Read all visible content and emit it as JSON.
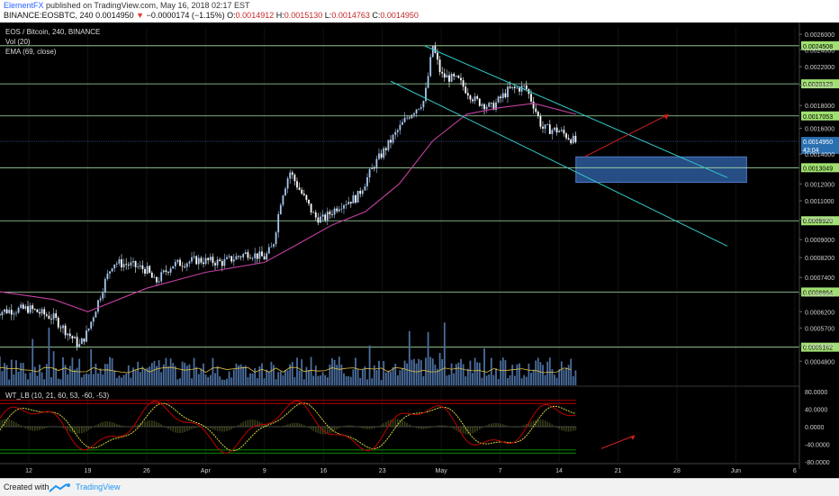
{
  "header": {
    "author": "ElementFX",
    "published": "published on TradingView.com, May 16, 2018 02:17 EST",
    "symbol": "BINANCE:EOSBTC, 240",
    "last": "0.0014950",
    "arrow": "▼",
    "change": "−0.0000174 (−1.15%)",
    "o_label": "O:",
    "o_value": "0.0014912",
    "h_label": "H:",
    "h_value": "0.0015130",
    "l_label": "L:",
    "l_value": "0.0014763",
    "c_label": "C:",
    "c_value": "0.0014950"
  },
  "legend": {
    "title": "EOS / Bitcoin, 240, BINANCE",
    "vol": "Vol (20)",
    "ema": "EMA (69, close)",
    "wt": "WT_LB (10, 21, 60, 53, -60, -53)"
  },
  "footer": {
    "created": "Created with",
    "brand": "TradingView"
  },
  "colors": {
    "background": "#000000",
    "up_candle": "#a8c8f0",
    "down_candle": "#ffffff",
    "ema": "#c040a0",
    "channel": "#30c8c8",
    "horizontal_level": "#a8e0a8",
    "level_badge": "#a0e070",
    "current_price_badge": "#2a6fb0",
    "target_zone": "#2e5a9c",
    "projection_arrow": "#d02020",
    "volume": "#4a6ea0",
    "volume_ma": "#e0c040",
    "wt1": "#c00000",
    "wt2": "#e8e840",
    "wt_ob": "#e00000",
    "wt_os": "#00c000"
  },
  "chart_data": {
    "type": "candlestick",
    "title": "EOS / Bitcoin, 240, BINANCE",
    "x_ticks": [
      "12",
      "19",
      "26",
      "Apr",
      "9",
      "16",
      "23",
      "May",
      "7",
      "14",
      "21",
      "28",
      "Jun",
      "6"
    ],
    "y_ticks": [
      "0.0026000",
      "0.0024000",
      "0.0022000",
      "0.0020000",
      "0.0018000",
      "0.0016000",
      "0.0014000",
      "0.0012000",
      "0.0011000",
      "0.0010000",
      "0.0009000",
      "0.0008200",
      "0.0007400",
      "0.0006800",
      "0.0006200",
      "0.0005700",
      "0.0005200",
      "0.0004800"
    ],
    "ylim": [
      0.00044,
      0.0027
    ],
    "y_scale": "log",
    "horizontal_levels": [
      "0.0024508",
      "0.0020129",
      "0.0017053",
      "0.0013049",
      "0.0009920",
      "0.0006864",
      "0.0005162"
    ],
    "current_price": "0.0014950",
    "countdown": "43:04",
    "target_zone": {
      "from_date": "2018-05-16",
      "to_date": "2018-06-01",
      "low": 0.00121,
      "high": 0.00138
    },
    "channel": {
      "upper": [
        [
          "2018-04-28",
          0.00245
        ],
        [
          "2018-06-03",
          0.00124
        ]
      ],
      "lower": [
        [
          "2018-04-24",
          0.00204
        ],
        [
          "2018-06-03",
          0.00087
        ]
      ]
    },
    "close_path": [
      [
        "2018-03-08",
        0.00062
      ],
      [
        "2018-03-12",
        0.00063
      ],
      [
        "2018-03-15",
        0.0006
      ],
      [
        "2018-03-18",
        0.00052
      ],
      [
        "2018-03-19",
        0.00056
      ],
      [
        "2018-03-21",
        0.00072
      ],
      [
        "2018-03-22",
        0.0008
      ],
      [
        "2018-03-24",
        0.00079
      ],
      [
        "2018-03-26",
        0.00077
      ],
      [
        "2018-03-27",
        0.00072
      ],
      [
        "2018-03-29",
        0.00079
      ],
      [
        "2018-04-01",
        0.00081
      ],
      [
        "2018-04-04",
        0.0008
      ],
      [
        "2018-04-07",
        0.00084
      ],
      [
        "2018-04-09",
        0.00082
      ],
      [
        "2018-04-10",
        0.00087
      ],
      [
        "2018-04-11",
        0.00112
      ],
      [
        "2018-04-12",
        0.00128
      ],
      [
        "2018-04-13",
        0.00118
      ],
      [
        "2018-04-15",
        0.00101
      ],
      [
        "2018-04-16",
        0.001
      ],
      [
        "2018-04-18",
        0.00108
      ],
      [
        "2018-04-20",
        0.00112
      ],
      [
        "2018-04-22",
        0.00132
      ],
      [
        "2018-04-24",
        0.0015
      ],
      [
        "2018-04-26",
        0.0017
      ],
      [
        "2018-04-28",
        0.00185
      ],
      [
        "2018-04-29",
        0.00245
      ],
      [
        "2018-04-30",
        0.0021
      ],
      [
        "2018-05-02",
        0.00205
      ],
      [
        "2018-05-04",
        0.00185
      ],
      [
        "2018-05-06",
        0.00178
      ],
      [
        "2018-05-08",
        0.00195
      ],
      [
        "2018-05-10",
        0.00198
      ],
      [
        "2018-05-11",
        0.0018
      ],
      [
        "2018-05-12",
        0.0016
      ],
      [
        "2018-05-14",
        0.00158
      ],
      [
        "2018-05-16",
        0.00149
      ]
    ],
    "ema_path": [
      [
        "2018-03-08",
        0.00069
      ],
      [
        "2018-03-15",
        0.00066
      ],
      [
        "2018-03-19",
        0.00062
      ],
      [
        "2018-03-26",
        0.0007
      ],
      [
        "2018-04-02",
        0.00076
      ],
      [
        "2018-04-09",
        0.0008
      ],
      [
        "2018-04-13",
        0.00088
      ],
      [
        "2018-04-17",
        0.00097
      ],
      [
        "2018-04-21",
        0.00104
      ],
      [
        "2018-04-25",
        0.0012
      ],
      [
        "2018-04-29",
        0.0015
      ],
      [
        "2018-05-03",
        0.00172
      ],
      [
        "2018-05-07",
        0.00178
      ],
      [
        "2018-05-11",
        0.00182
      ],
      [
        "2018-05-16",
        0.00172
      ]
    ],
    "wt_ticks": [
      "80.0000",
      "40.0000",
      "0.0000",
      "-40.0000",
      "-80.0000"
    ],
    "wt_levels": [
      60,
      53,
      -60,
      -53
    ]
  }
}
